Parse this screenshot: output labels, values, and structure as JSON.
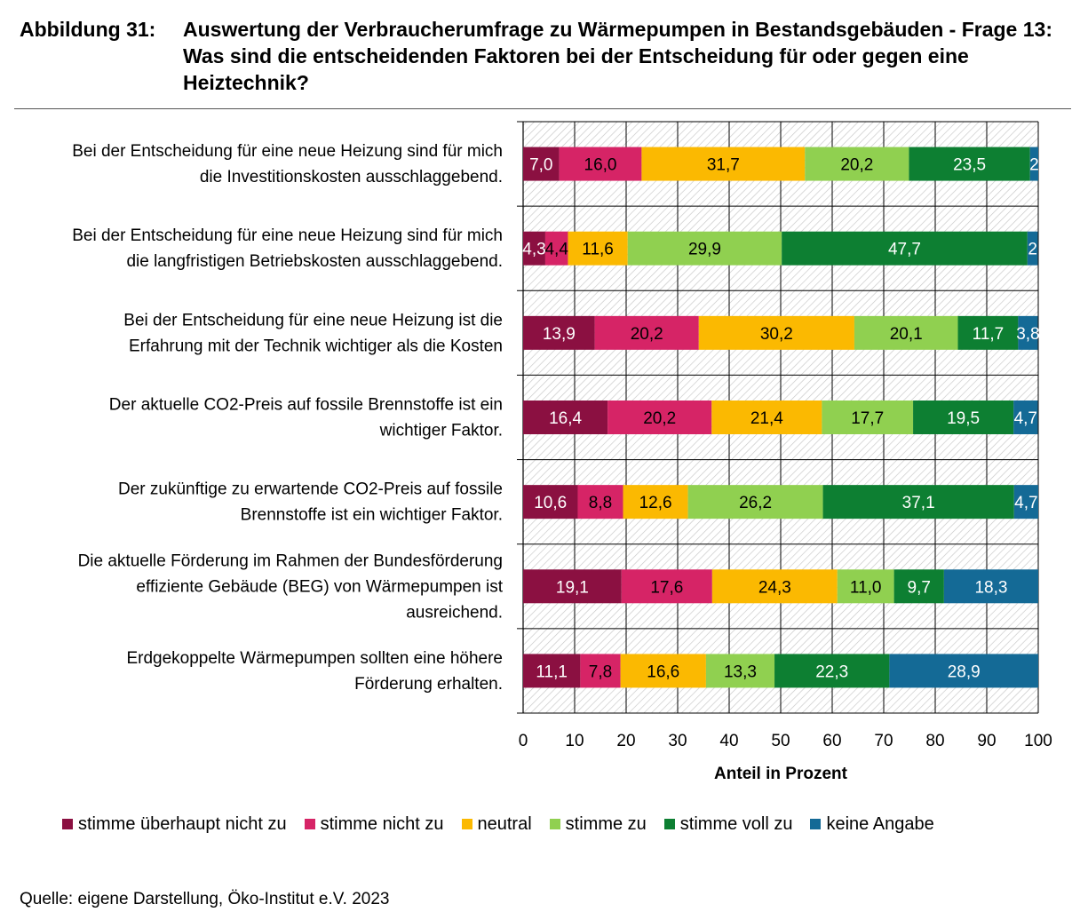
{
  "header": {
    "figure_label": "Abbildung 31:",
    "title": "Auswertung der Verbraucherumfrage zu Wärmepumpen in Bestandsgebäuden - Frage 13: Was sind die entscheidenden Faktoren bei der Entscheidung für oder gegen eine Heiztechnik?"
  },
  "chart_data": {
    "type": "bar",
    "orientation": "horizontal",
    "stacked": true,
    "categories": [
      [
        "Bei der Entscheidung für eine neue Heizung sind für mich",
        "die Investitionskosten ausschlaggebend."
      ],
      [
        "Bei der Entscheidung für eine neue Heizung sind für mich",
        "die langfristigen Betriebskosten ausschlaggebend."
      ],
      [
        "Bei der Entscheidung für eine neue Heizung ist die",
        "Erfahrung mit der Technik wichtiger als die Kosten"
      ],
      [
        "Der aktuelle CO2-Preis auf fossile Brennstoffe ist ein",
        "wichtiger Faktor."
      ],
      [
        "Der zukünftige zu erwartende CO2-Preis auf fossile",
        "Brennstoffe ist ein wichtiger Faktor."
      ],
      [
        "Die aktuelle Förderung im Rahmen der Bundesförderung",
        "effiziente Gebäude (BEG) von Wärmepumpen ist",
        "ausreichend."
      ],
      [
        "Erdgekoppelte Wärmepumpen sollten eine höhere",
        "Förderung erhalten."
      ]
    ],
    "series": [
      {
        "name": "stimme überhaupt nicht zu",
        "color": "#8b1041",
        "values": [
          7.0,
          4.3,
          13.9,
          16.4,
          10.6,
          19.1,
          11.1
        ]
      },
      {
        "name": "stimme nicht zu",
        "color": "#d62466",
        "values": [
          16.0,
          4.4,
          20.2,
          20.2,
          8.8,
          17.6,
          7.8
        ]
      },
      {
        "name": "neutral",
        "color": "#fbb901",
        "values": [
          31.7,
          11.6,
          30.2,
          21.4,
          12.6,
          24.3,
          16.6
        ]
      },
      {
        "name": "stimme zu",
        "color": "#90d050",
        "values": [
          20.2,
          29.9,
          20.1,
          17.7,
          26.2,
          11.0,
          13.3
        ]
      },
      {
        "name": "stimme voll zu",
        "color": "#0d7f32",
        "values": [
          23.5,
          47.7,
          11.7,
          19.5,
          37.1,
          9.7,
          22.3
        ]
      },
      {
        "name": "keine Angabe",
        "color": "#146a96",
        "values": [
          2,
          2,
          3.8,
          4.7,
          4.7,
          18.3,
          28.9
        ]
      }
    ],
    "value_labels": [
      [
        "7,0",
        "16,0",
        "31,7",
        "20,2",
        "23,5",
        "2"
      ],
      [
        "4,3",
        "4,4",
        "11,6",
        "29,9",
        "47,7",
        "2"
      ],
      [
        "13,9",
        "20,2",
        "30,2",
        "20,1",
        "11,7",
        "3,8"
      ],
      [
        "16,4",
        "20,2",
        "21,4",
        "17,7",
        "19,5",
        "4,7"
      ],
      [
        "10,6",
        "8,8",
        "12,6",
        "26,2",
        "37,1",
        "4,7"
      ],
      [
        "19,1",
        "17,6",
        "24,3",
        "11,0",
        "9,7",
        "18,3"
      ],
      [
        "11,1",
        "7,8",
        "16,6",
        "13,3",
        "22,3",
        "28,9"
      ]
    ],
    "label_colors": [
      "#ffffff",
      "#000000",
      "#000000",
      "#000000",
      "#ffffff",
      "#ffffff"
    ],
    "xlim": [
      0,
      100
    ],
    "xticks": [
      0,
      10,
      20,
      30,
      40,
      50,
      60,
      70,
      80,
      90,
      100
    ],
    "xlabel": "Anteil in Prozent",
    "grid": true,
    "background_pattern": "diagonal hatch",
    "legend_position": "bottom"
  },
  "footer": {
    "source": "Quelle: eigene Darstellung, Öko-Institut e.V. 2023"
  }
}
